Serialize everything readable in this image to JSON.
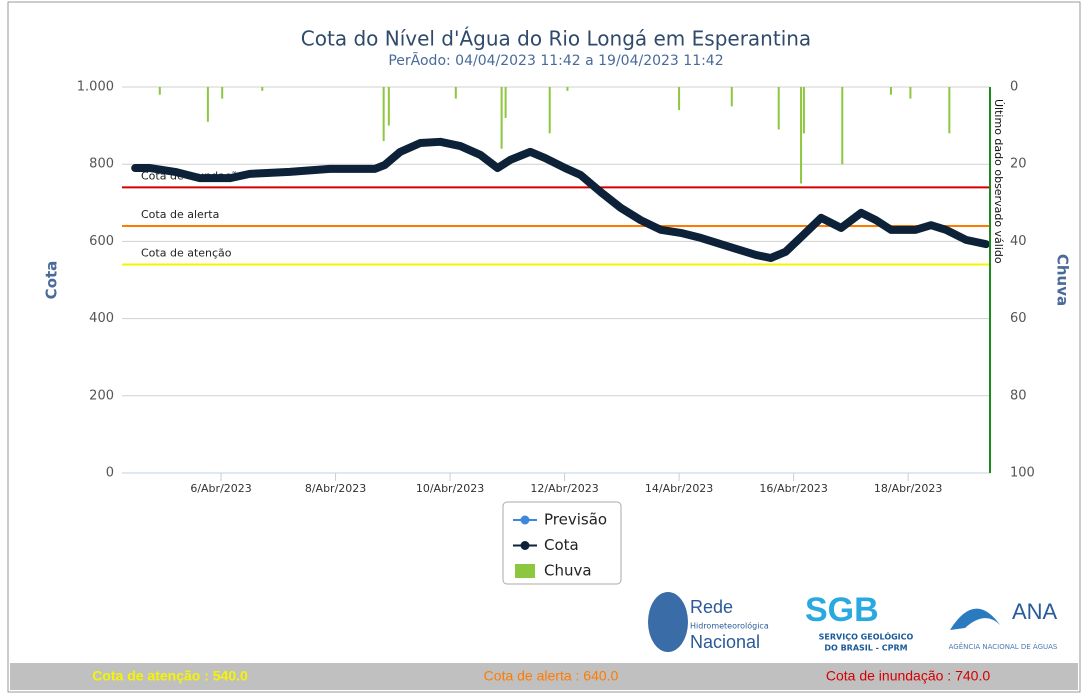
{
  "chart_data": {
    "type": "line",
    "title": "Cota do Nível d'Água do Rio Longá em Esperantina",
    "subtitle": "PerÃodo: 04/04/2023 11:42 a 19/04/2023 11:42",
    "y_label": "Cota",
    "y2_label": "Chuva",
    "xlim": [
      4.27,
      19.43
    ],
    "xticks": [
      {
        "value": 6,
        "label": "6/Abr/2023"
      },
      {
        "value": 8,
        "label": "8/Abr/2023"
      },
      {
        "value": 10,
        "label": "10/Abr/2023"
      },
      {
        "value": 12,
        "label": "12/Abr/2023"
      },
      {
        "value": 14,
        "label": "14/Abr/2023"
      },
      {
        "value": 16,
        "label": "16/Abr/2023"
      },
      {
        "value": 18,
        "label": "18/Abr/2023"
      }
    ],
    "ylim": [
      0,
      1000
    ],
    "yticks": [
      0,
      200,
      400,
      600,
      800,
      {
        "value": 1000,
        "label": "1.000"
      }
    ],
    "y2lim": [
      0,
      100
    ],
    "y2ticks": [
      0,
      20,
      40,
      60,
      80,
      100
    ],
    "y2_reversed": true,
    "grid": true,
    "series": [
      {
        "name": "Previsão",
        "type": "line",
        "color": "#3f87d8",
        "x": [],
        "values": []
      },
      {
        "name": "Cota",
        "type": "line",
        "color": "#0d2238",
        "x": [
          4.5,
          4.76,
          5.2,
          5.63,
          6.16,
          6.5,
          7.2,
          7.9,
          8.69,
          8.86,
          9.13,
          9.48,
          9.83,
          10.18,
          10.53,
          10.83,
          11.05,
          11.4,
          11.66,
          12.01,
          12.28,
          12.63,
          12.98,
          13.33,
          13.68,
          14.03,
          14.38,
          14.9,
          15.34,
          15.6,
          15.86,
          16.13,
          16.48,
          16.83,
          17.18,
          17.44,
          17.7,
          18.13,
          18.4,
          18.66,
          19.01,
          19.36
        ],
        "values": [
          790,
          790,
          780,
          764,
          764,
          775,
          780,
          788,
          788,
          798,
          832,
          855,
          858,
          847,
          824,
          790,
          811,
          832,
          816,
          790,
          772,
          728,
          687,
          655,
          630,
          622,
          609,
          585,
          565,
          557,
          573,
          611,
          661,
          635,
          674,
          655,
          630,
          630,
          642,
          630,
          604,
          593
        ]
      },
      {
        "name": "Chuva",
        "type": "bar",
        "axis": "y2",
        "color": "#8dc63f",
        "x": [
          4.93,
          5.77,
          6.02,
          6.72,
          8.84,
          8.93,
          10.1,
          10.9,
          10.97,
          11.74,
          12.05,
          14.0,
          14.92,
          15.74,
          16.13,
          16.18,
          16.85,
          17.7,
          18.04,
          18.72
        ],
        "values": [
          2,
          9,
          3,
          1,
          14,
          10,
          3,
          16,
          8,
          12,
          1,
          6,
          5,
          11,
          25,
          12,
          20,
          2,
          3,
          12
        ]
      }
    ],
    "thresholds": [
      {
        "name": "Cota de inundação",
        "value": 740,
        "color": "#d40000",
        "footer_label": "Cota de inundação : 740.0"
      },
      {
        "name": "Cota de alerta",
        "value": 640,
        "color": "#ff7b00",
        "footer_label": "Cota de alerta : 640.0"
      },
      {
        "name": "Cota de atenção",
        "value": 540,
        "color": "#f5f500",
        "footer_label": "Cota de atenção : 540.0"
      }
    ],
    "last_observed": {
      "x": 19.43,
      "label": "Último dado observado válido",
      "color": "#1a8a1a"
    }
  },
  "logos": {
    "rede": [
      "Rede",
      "Hidrometeorológica",
      "Nacional"
    ],
    "sgb": [
      "SGB",
      "SERVIÇO GEOLÓGICO",
      "DO BRASIL - CPRM"
    ],
    "ana": [
      "ANA",
      "AGÊNCIA NACIONAL DE ÁGUAS"
    ]
  }
}
